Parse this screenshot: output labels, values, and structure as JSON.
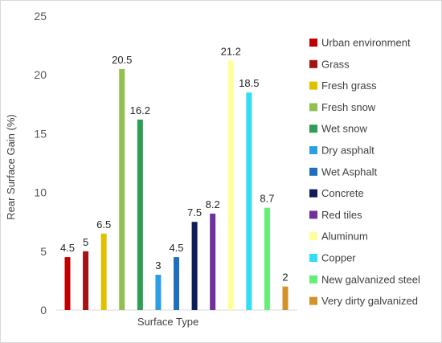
{
  "chart_data": {
    "type": "bar",
    "ylabel": "Rear Surface Gain (%)",
    "xlabel": "Surface Type",
    "ylim": [
      0,
      25
    ],
    "yticks": [
      0,
      5,
      10,
      15,
      20,
      25
    ],
    "grid": false,
    "legend_position": "right",
    "series": [
      {
        "name": "Urban environment",
        "value": 4.5,
        "label": "4.5",
        "color": "#c00000"
      },
      {
        "name": "Grass",
        "value": 5,
        "label": "5",
        "color": "#a31515"
      },
      {
        "name": "Fresh grass",
        "value": 6.5,
        "label": "6.5",
        "color": "#e0c000"
      },
      {
        "name": "Fresh snow",
        "value": 20.5,
        "label": "20.5",
        "color": "#92c050"
      },
      {
        "name": "Wet snow",
        "value": 16.2,
        "label": "16.2",
        "color": "#2e9e52"
      },
      {
        "name": "Dry asphalt",
        "value": 3,
        "label": "3",
        "color": "#2b9fe6"
      },
      {
        "name": "Wet Asphalt",
        "value": 4.5,
        "label": "4.5",
        "color": "#1f6fbf"
      },
      {
        "name": "Concrete",
        "value": 7.5,
        "label": "7.5",
        "color": "#0f1e5a"
      },
      {
        "name": "Red tiles",
        "value": 8.2,
        "label": "8.2",
        "color": "#7030a0"
      },
      {
        "name": "Aluminum",
        "value": 21.2,
        "label": "21.2",
        "color": "#ffff99"
      },
      {
        "name": "Copper",
        "value": 18.5,
        "label": "18.5",
        "color": "#33ddf5"
      },
      {
        "name": "New galvanized steel",
        "value": 8.7,
        "label": "8.7",
        "color": "#66ee77"
      },
      {
        "name": "Very dirty galvanized",
        "value": 2,
        "label": "2",
        "color": "#d4922a"
      }
    ]
  }
}
